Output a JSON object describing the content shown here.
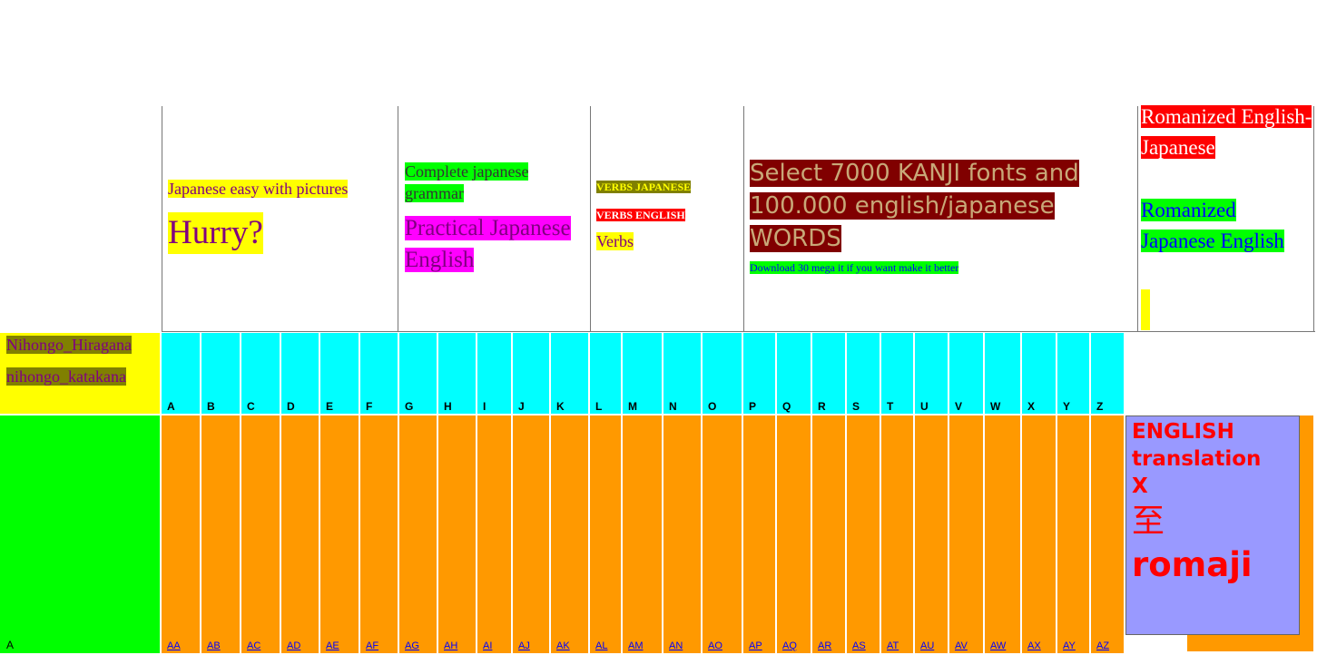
{
  "panel1": {
    "link_easy": "Japanese easy with pictures",
    "link_hurry": "Hurry?"
  },
  "panel2": {
    "link_grammar": " Complete japanese grammar",
    "link_practical": "Practical Japanese English"
  },
  "panel3": {
    "verbs_japanese": "VERBS JAPANESE",
    "verbs_english": "VERBS ENGLISH",
    "verbs": "Verbs"
  },
  "panel4": {
    "kanji_heading": "Select 7000 KANJI fonts and 100.000 english/japanese WORDS",
    "download": "Download 30 mega it if you want make it better"
  },
  "panel5": {
    "romanized_ej": "Romanized English-Japanese",
    "romanized_je": "Romanized Japanese English"
  },
  "left": {
    "hiragana": "Nihongo_Hiragana",
    "katakana": "nihongo_katakana",
    "green_letter": "A"
  },
  "letters": [
    "A",
    "B",
    "C",
    "D",
    "E",
    "F",
    "G",
    "H",
    "I",
    "J",
    "K",
    "L",
    "M",
    "N",
    "O",
    "P",
    "Q",
    "R",
    "S",
    "T",
    "U",
    "V",
    "W",
    "X",
    "Y",
    "Z"
  ],
  "double_letters": [
    "AA",
    "AB",
    "AC",
    "AD",
    "AE",
    "AF",
    "AG",
    "AH",
    "AI",
    "AJ",
    "AK",
    "AL",
    "AM",
    "AN",
    "AO",
    "AP",
    "AQ",
    "AR",
    "AS",
    "AT",
    "AU",
    "AV",
    "AW",
    "AX",
    "AY",
    "AZ"
  ],
  "translation_box": {
    "line1": "ENGLISH",
    "line2": "translation",
    "line3": "X",
    "kanji": "至",
    "romaji": "romaji"
  },
  "colors": {
    "cyan": "#00ffff",
    "orange": "#ff9900",
    "green": "#00ff00",
    "yellow": "#ffff00",
    "lavender": "#9999ff",
    "red_text": "#ff0000"
  }
}
